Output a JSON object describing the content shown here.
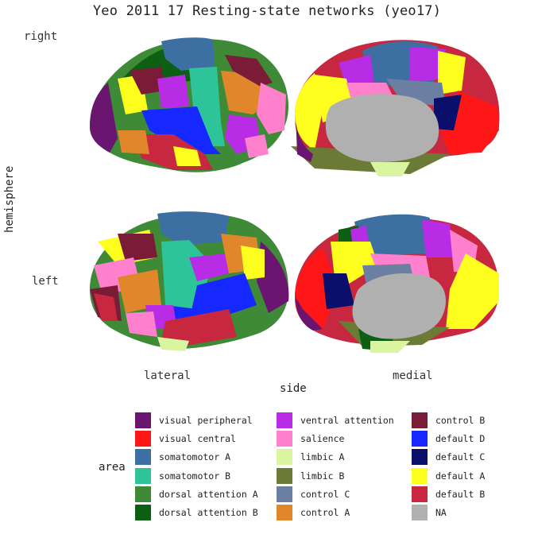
{
  "title": "Yeo 2011 17 Resting-state networks (yeo17)",
  "y_axis": {
    "label": "hemisphere",
    "rows": [
      "right",
      "left"
    ]
  },
  "x_axis": {
    "label": "side",
    "columns": [
      "lateral",
      "medial"
    ]
  },
  "legend": {
    "title": "area",
    "items": [
      {
        "label": "visual peripheral",
        "color": "#6a1670"
      },
      {
        "label": "visual central",
        "color": "#ff1717"
      },
      {
        "label": "somatomotor A",
        "color": "#3e6fa3"
      },
      {
        "label": "somatomotor B",
        "color": "#2ec49a"
      },
      {
        "label": "dorsal attention A",
        "color": "#3e8a36"
      },
      {
        "label": "dorsal attention B",
        "color": "#0d5f14"
      },
      {
        "label": "ventral attention",
        "color": "#b82ce6"
      },
      {
        "label": "salience",
        "color": "#ff80cc"
      },
      {
        "label": "limbic A",
        "color": "#d9f5a2"
      },
      {
        "label": "limbic B",
        "color": "#6b7a34"
      },
      {
        "label": "control C",
        "color": "#6b7fa3"
      },
      {
        "label": "control A",
        "color": "#e0872b"
      },
      {
        "label": "control B",
        "color": "#7a1c38"
      },
      {
        "label": "default D",
        "color": "#1428ff"
      },
      {
        "label": "default C",
        "color": "#0a0f6b"
      },
      {
        "label": "default A",
        "color": "#ffff1f"
      },
      {
        "label": "default B",
        "color": "#c8283f"
      },
      {
        "label": "NA",
        "color": "#b0b0b0"
      }
    ]
  }
}
